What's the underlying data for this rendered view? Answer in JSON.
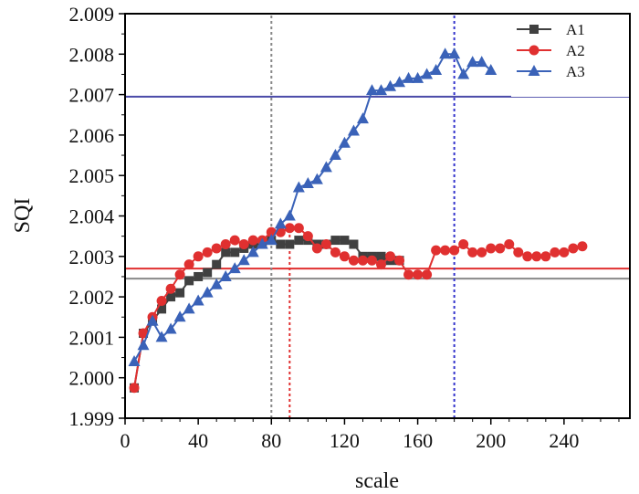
{
  "chart_data": {
    "type": "line",
    "title": "",
    "xlabel": "scale",
    "ylabel": "SQI",
    "xlim": [
      0,
      276
    ],
    "ylim": [
      1.999,
      2.009
    ],
    "xticks": [
      "0",
      "40",
      "80",
      "120",
      "160",
      "200",
      "240"
    ],
    "xtick_values": [
      0,
      40,
      80,
      120,
      160,
      200,
      240
    ],
    "yticks": [
      "1.999",
      "2.000",
      "2.001",
      "2.002",
      "2.003",
      "2.004",
      "2.005",
      "2.006",
      "2.007",
      "2.008",
      "2.009"
    ],
    "ytick_values": [
      1.999,
      2.0,
      2.001,
      2.002,
      2.003,
      2.004,
      2.005,
      2.006,
      2.007,
      2.008,
      2.009
    ],
    "legend_position": "top-right",
    "series": [
      {
        "name": "A1",
        "color": "#404040",
        "marker": "square",
        "x": [
          5,
          10,
          15,
          20,
          25,
          30,
          35,
          40,
          45,
          50,
          55,
          60,
          65,
          70,
          75,
          80,
          85,
          90,
          95,
          100,
          105,
          110,
          115,
          120,
          125,
          130,
          135,
          140,
          145,
          150
        ],
        "y": [
          1.99975,
          2.0011,
          2.0014,
          2.0017,
          2.002,
          2.0021,
          2.0024,
          2.0025,
          2.0026,
          2.0028,
          2.0031,
          2.0031,
          2.0032,
          2.0033,
          2.0033,
          2.0034,
          2.0033,
          2.0033,
          2.0034,
          2.0034,
          2.0033,
          2.0033,
          2.0034,
          2.0034,
          2.0033,
          2.003,
          2.003,
          2.003,
          2.0029,
          2.0029
        ]
      },
      {
        "name": "A2",
        "color": "#e03030",
        "marker": "circle",
        "x": [
          5,
          10,
          15,
          20,
          25,
          30,
          35,
          40,
          45,
          50,
          55,
          60,
          65,
          70,
          75,
          80,
          85,
          90,
          95,
          100,
          105,
          110,
          115,
          120,
          125,
          130,
          135,
          140,
          145,
          150,
          155,
          160,
          165,
          170,
          175,
          180,
          185,
          190,
          195,
          200,
          205,
          210,
          215,
          220,
          225,
          230,
          235,
          240,
          245,
          250
        ],
        "y": [
          1.99975,
          2.0011,
          2.0015,
          2.0019,
          2.0022,
          2.00255,
          2.0028,
          2.003,
          2.0031,
          2.0032,
          2.0033,
          2.0034,
          2.0033,
          2.0034,
          2.0034,
          2.0036,
          2.0036,
          2.0037,
          2.0037,
          2.0035,
          2.0032,
          2.0033,
          2.0031,
          2.003,
          2.0029,
          2.0029,
          2.0029,
          2.0028,
          2.003,
          2.0029,
          2.00255,
          2.00255,
          2.00255,
          2.00315,
          2.00315,
          2.00315,
          2.0033,
          2.0031,
          2.0031,
          2.0032,
          2.0032,
          2.0033,
          2.0031,
          2.003,
          2.003,
          2.003,
          2.0031,
          2.0031,
          2.0032,
          2.00325
        ]
      },
      {
        "name": "A3",
        "color": "#3a62b8",
        "marker": "triangle",
        "x": [
          5,
          10,
          15,
          20,
          25,
          30,
          35,
          40,
          45,
          50,
          55,
          60,
          65,
          70,
          75,
          80,
          85,
          90,
          95,
          100,
          105,
          110,
          115,
          120,
          125,
          130,
          135,
          140,
          145,
          150,
          155,
          160,
          165,
          170,
          175,
          180,
          185,
          190,
          195,
          200
        ],
        "y": [
          2.0004,
          2.0008,
          2.0014,
          2.001,
          2.0012,
          2.0015,
          2.0017,
          2.0019,
          2.0021,
          2.0023,
          2.0025,
          2.0027,
          2.0029,
          2.0031,
          2.0033,
          2.0034,
          2.0038,
          2.004,
          2.0047,
          2.0048,
          2.0049,
          2.0052,
          2.0055,
          2.0058,
          2.0061,
          2.0064,
          2.0071,
          2.0071,
          2.0072,
          2.0073,
          2.0074,
          2.0074,
          2.0075,
          2.0076,
          2.008,
          2.008,
          2.0075,
          2.0078,
          2.0078,
          2.0076
        ]
      }
    ],
    "reference_lines": {
      "horizontal": [
        {
          "y": 2.00695,
          "color": "#4a4aa8"
        },
        {
          "y": 2.0027,
          "color": "#e03030"
        },
        {
          "y": 2.00245,
          "color": "#888888"
        }
      ],
      "vertical": [
        {
          "x": 80,
          "color": "#888888"
        },
        {
          "x": 90,
          "color": "#e03030"
        },
        {
          "x": 180,
          "color": "#3333cc"
        }
      ]
    }
  }
}
